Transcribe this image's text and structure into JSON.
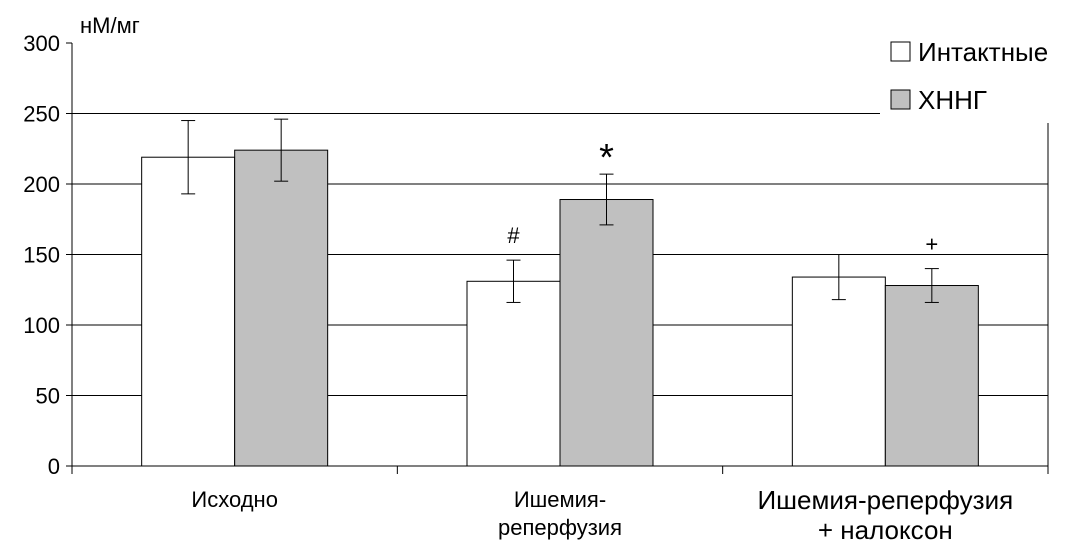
{
  "chart_data": {
    "type": "bar",
    "ylabel": "нМ/мг",
    "ylim": [
      0,
      300
    ],
    "yticks": [
      0,
      50,
      100,
      150,
      200,
      250,
      300
    ],
    "grid": true,
    "legend_position": "top-right",
    "categories": [
      [
        "Исходно"
      ],
      [
        "Ишемия-",
        "реперфузия"
      ],
      [
        "Ишемия-реперфузия",
        "+ налоксон"
      ]
    ],
    "series": [
      {
        "name": "Интактные",
        "color": "#ffffff",
        "values": [
          219,
          131,
          134
        ],
        "errors": [
          26,
          15,
          16
        ]
      },
      {
        "name": "ХННГ",
        "color": "#c0c0c0",
        "values": [
          224,
          189,
          128
        ],
        "errors": [
          22,
          18,
          12
        ]
      }
    ],
    "annotations": [
      {
        "category": 1,
        "series": 0,
        "text": "#"
      },
      {
        "category": 1,
        "series": 1,
        "text": "*"
      },
      {
        "category": 2,
        "series": 1,
        "text": "+"
      }
    ]
  }
}
